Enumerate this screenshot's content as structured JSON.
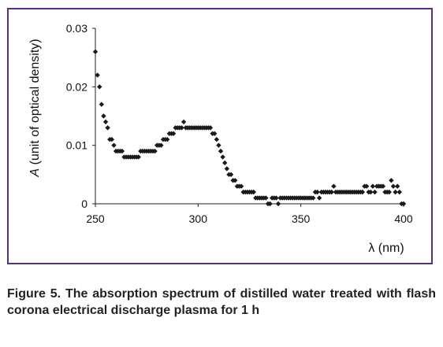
{
  "chart_data": {
    "type": "scatter",
    "title": "",
    "xlabel": "λ (nm)",
    "ylabel": "A (unit of optical density)",
    "ylabel_italic_part": "A",
    "ylabel_rest": " (unit of optical density)",
    "xlim": [
      250,
      400
    ],
    "ylim": [
      0,
      0.03
    ],
    "x_ticks": [
      250,
      300,
      350,
      400
    ],
    "y_ticks": [
      0,
      0.01,
      0.02,
      0.03
    ],
    "x_tick_labels": [
      "250",
      "300",
      "350",
      "400"
    ],
    "y_tick_labels": [
      "0",
      "0.01",
      "0.02",
      "0.03"
    ],
    "grid": false,
    "legend": "none",
    "marker_color": "#1a1a1a",
    "frame_color": "#5b2d86",
    "series": [
      {
        "points": [
          [
            250,
            0.026
          ],
          [
            251,
            0.022
          ],
          [
            252,
            0.02
          ],
          [
            253,
            0.017
          ],
          [
            254,
            0.015
          ],
          [
            255,
            0.014
          ],
          [
            256,
            0.013
          ],
          [
            257,
            0.011
          ],
          [
            258,
            0.011
          ],
          [
            259,
            0.01
          ],
          [
            260,
            0.009
          ],
          [
            261,
            0.009
          ],
          [
            262,
            0.009
          ],
          [
            263,
            0.009
          ],
          [
            264,
            0.008
          ],
          [
            265,
            0.008
          ],
          [
            266,
            0.008
          ],
          [
            267,
            0.008
          ],
          [
            268,
            0.008
          ],
          [
            269,
            0.008
          ],
          [
            270,
            0.008
          ],
          [
            271,
            0.008
          ],
          [
            272,
            0.009
          ],
          [
            273,
            0.009
          ],
          [
            274,
            0.009
          ],
          [
            275,
            0.009
          ],
          [
            276,
            0.009
          ],
          [
            277,
            0.009
          ],
          [
            278,
            0.009
          ],
          [
            279,
            0.009
          ],
          [
            280,
            0.01
          ],
          [
            281,
            0.01
          ],
          [
            282,
            0.01
          ],
          [
            283,
            0.011
          ],
          [
            284,
            0.011
          ],
          [
            285,
            0.011
          ],
          [
            286,
            0.012
          ],
          [
            287,
            0.012
          ],
          [
            288,
            0.012
          ],
          [
            289,
            0.013
          ],
          [
            290,
            0.013
          ],
          [
            291,
            0.013
          ],
          [
            292,
            0.013
          ],
          [
            293,
            0.014
          ],
          [
            294,
            0.013
          ],
          [
            295,
            0.013
          ],
          [
            296,
            0.013
          ],
          [
            297,
            0.013
          ],
          [
            298,
            0.013
          ],
          [
            299,
            0.013
          ],
          [
            300,
            0.013
          ],
          [
            301,
            0.013
          ],
          [
            302,
            0.013
          ],
          [
            303,
            0.013
          ],
          [
            304,
            0.013
          ],
          [
            305,
            0.013
          ],
          [
            306,
            0.013
          ],
          [
            307,
            0.012
          ],
          [
            308,
            0.012
          ],
          [
            309,
            0.011
          ],
          [
            310,
            0.01
          ],
          [
            311,
            0.009
          ],
          [
            312,
            0.008
          ],
          [
            313,
            0.007
          ],
          [
            314,
            0.006
          ],
          [
            315,
            0.005
          ],
          [
            316,
            0.005
          ],
          [
            317,
            0.004
          ],
          [
            318,
            0.004
          ],
          [
            319,
            0.003
          ],
          [
            320,
            0.003
          ],
          [
            321,
            0.003
          ],
          [
            322,
            0.002
          ],
          [
            323,
            0.002
          ],
          [
            324,
            0.002
          ],
          [
            325,
            0.002
          ],
          [
            326,
            0.002
          ],
          [
            327,
            0.002
          ],
          [
            328,
            0.001
          ],
          [
            329,
            0.001
          ],
          [
            330,
            0.001
          ],
          [
            331,
            0.001
          ],
          [
            332,
            0.001
          ],
          [
            333,
            0.001
          ],
          [
            334,
            0.0
          ],
          [
            335,
            0.0
          ],
          [
            336,
            0.001
          ],
          [
            337,
            0.001
          ],
          [
            338,
            0.001
          ],
          [
            339,
            0.0
          ],
          [
            340,
            0.001
          ],
          [
            341,
            0.001
          ],
          [
            342,
            0.001
          ],
          [
            343,
            0.001
          ],
          [
            344,
            0.001
          ],
          [
            345,
            0.001
          ],
          [
            346,
            0.001
          ],
          [
            347,
            0.001
          ],
          [
            348,
            0.001
          ],
          [
            349,
            0.001
          ],
          [
            350,
            0.001
          ],
          [
            351,
            0.001
          ],
          [
            352,
            0.001
          ],
          [
            353,
            0.001
          ],
          [
            354,
            0.001
          ],
          [
            355,
            0.001
          ],
          [
            356,
            0.001
          ],
          [
            357,
            0.002
          ],
          [
            358,
            0.002
          ],
          [
            359,
            0.001
          ],
          [
            360,
            0.002
          ],
          [
            361,
            0.002
          ],
          [
            362,
            0.002
          ],
          [
            363,
            0.002
          ],
          [
            364,
            0.002
          ],
          [
            365,
            0.002
          ],
          [
            366,
            0.003
          ],
          [
            367,
            0.002
          ],
          [
            368,
            0.002
          ],
          [
            369,
            0.002
          ],
          [
            370,
            0.002
          ],
          [
            371,
            0.002
          ],
          [
            372,
            0.002
          ],
          [
            373,
            0.002
          ],
          [
            374,
            0.002
          ],
          [
            375,
            0.002
          ],
          [
            376,
            0.002
          ],
          [
            377,
            0.002
          ],
          [
            378,
            0.002
          ],
          [
            379,
            0.002
          ],
          [
            380,
            0.002
          ],
          [
            381,
            0.003
          ],
          [
            382,
            0.003
          ],
          [
            383,
            0.002
          ],
          [
            384,
            0.002
          ],
          [
            385,
            0.003
          ],
          [
            386,
            0.002
          ],
          [
            387,
            0.003
          ],
          [
            388,
            0.003
          ],
          [
            389,
            0.003
          ],
          [
            390,
            0.003
          ],
          [
            391,
            0.002
          ],
          [
            392,
            0.002
          ],
          [
            393,
            0.002
          ],
          [
            394,
            0.004
          ],
          [
            395,
            0.003
          ],
          [
            396,
            0.002
          ],
          [
            397,
            0.003
          ],
          [
            398,
            0.002
          ],
          [
            399,
            0.0
          ],
          [
            400,
            0.0
          ]
        ]
      }
    ]
  },
  "caption": "Figure 5. The absorption spectrum of distilled water treated with flash corona electrical discharge plasma for 1 h"
}
